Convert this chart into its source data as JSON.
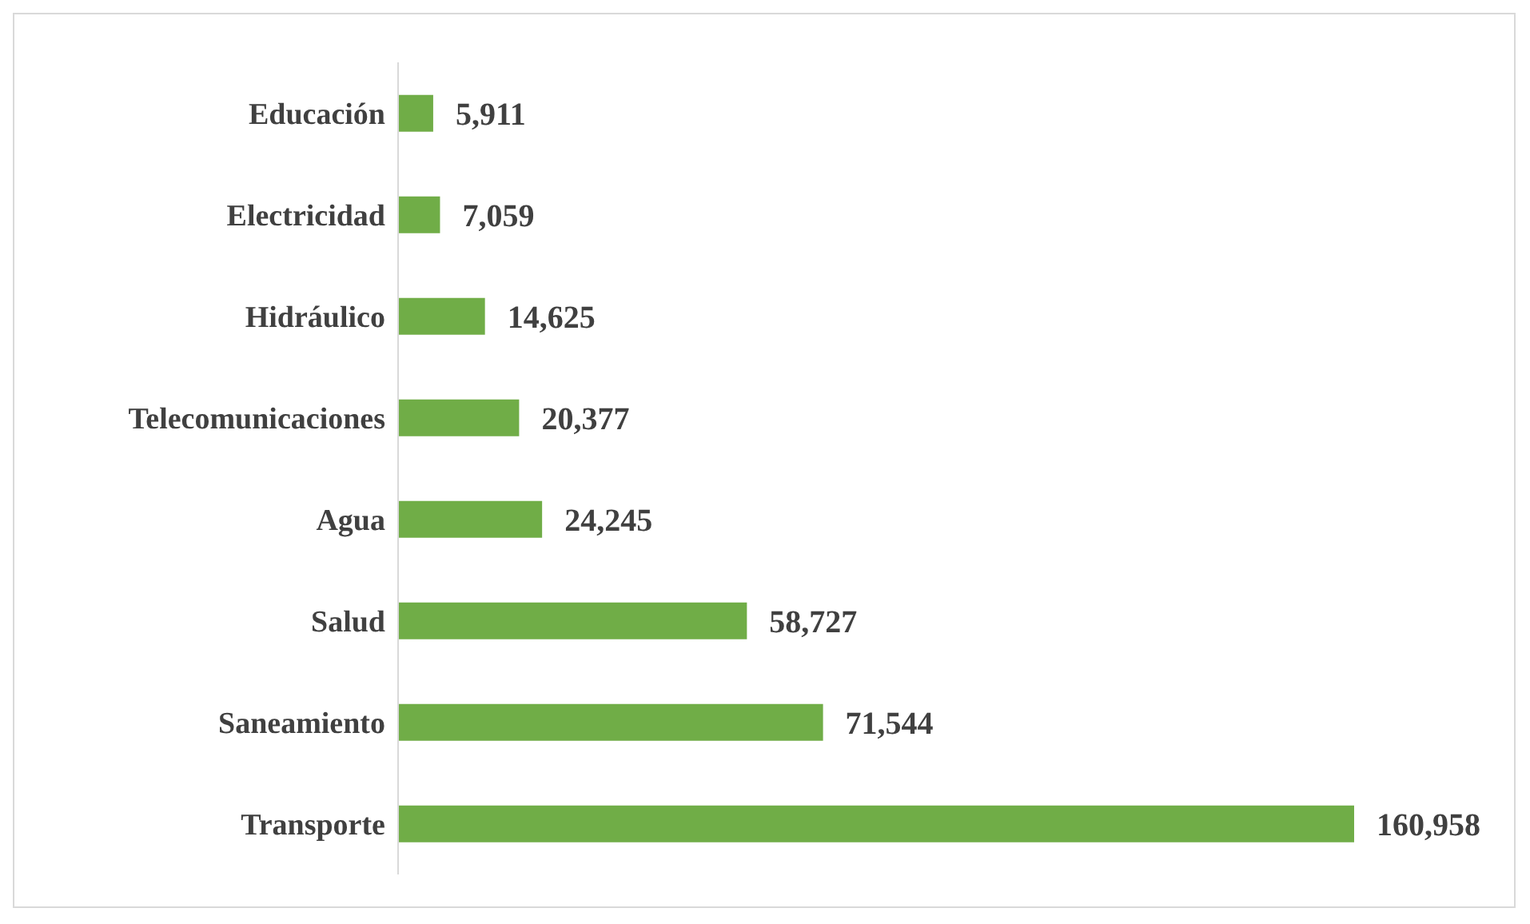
{
  "chart_data": {
    "type": "bar",
    "orientation": "horizontal",
    "categories": [
      "Educación",
      "Electricidad",
      "Hidráulico",
      "Telecomunicaciones",
      "Agua",
      "Salud",
      "Saneamiento",
      "Transporte"
    ],
    "values": [
      5911,
      7059,
      14625,
      20377,
      24245,
      58727,
      71544,
      160958
    ],
    "value_labels": [
      "5,911",
      "7,059",
      "14,625",
      "20,377",
      "24,245",
      "58,727",
      "71,544",
      "160,958"
    ],
    "color": "#70ad47",
    "legend": false,
    "grid": false
  }
}
